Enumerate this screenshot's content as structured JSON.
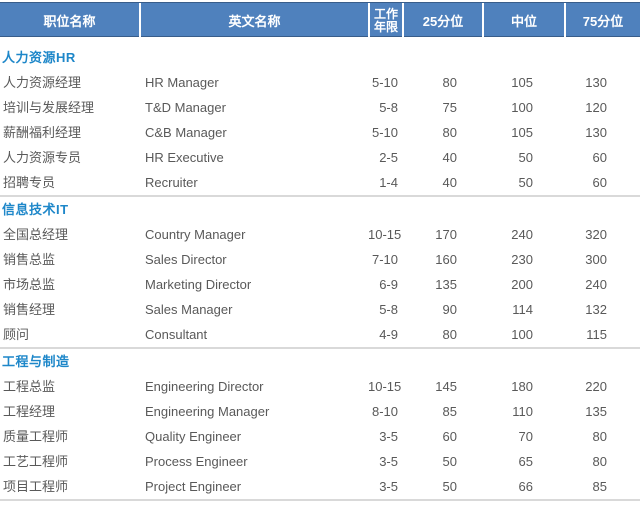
{
  "table": {
    "columns": {
      "position_cn": "职位名称",
      "position_en": "英文名称",
      "years_line1": "工作",
      "years_line2": "年限",
      "p25": "25分位",
      "median": "中位",
      "p75": "75分位"
    },
    "sections": [
      {
        "title": "人力资源HR",
        "rows": [
          {
            "cn": "人力资源经理",
            "en": "HR Manager",
            "years": "5-10",
            "p25": "80",
            "median": "105",
            "p75": "130"
          },
          {
            "cn": "培训与发展经理",
            "en": "T&D Manager",
            "years": "5-8",
            "p25": "75",
            "median": "100",
            "p75": "120"
          },
          {
            "cn": "薪酬福利经理",
            "en": "C&B Manager",
            "years": "5-10",
            "p25": "80",
            "median": "105",
            "p75": "130"
          },
          {
            "cn": "人力资源专员",
            "en": "HR Executive",
            "years": "2-5",
            "p25": "40",
            "median": "50",
            "p75": "60"
          },
          {
            "cn": "招聘专员",
            "en": "Recruiter",
            "years": "1-4",
            "p25": "40",
            "median": "50",
            "p75": "60"
          }
        ]
      },
      {
        "title": "信息技术IT",
        "rows": [
          {
            "cn": "全国总经理",
            "en": "Country Manager",
            "years": "10-15",
            "p25": "170",
            "median": "240",
            "p75": "320"
          },
          {
            "cn": "销售总监",
            "en": "Sales Director",
            "years": "7-10",
            "p25": "160",
            "median": "230",
            "p75": "300"
          },
          {
            "cn": "市场总监",
            "en": "Marketing Director",
            "years": "6-9",
            "p25": "135",
            "median": "200",
            "p75": "240"
          },
          {
            "cn": "销售经理",
            "en": "Sales Manager",
            "years": "5-8",
            "p25": "90",
            "median": "114",
            "p75": "132"
          },
          {
            "cn": "顾问",
            "en": "Consultant",
            "years": "4-9",
            "p25": "80",
            "median": "100",
            "p75": "115"
          }
        ]
      },
      {
        "title": "工程与制造",
        "rows": [
          {
            "cn": "工程总监",
            "en": "Engineering Director",
            "years": "10-15",
            "p25": "145",
            "median": "180",
            "p75": "220"
          },
          {
            "cn": "工程经理",
            "en": "Engineering Manager",
            "years": "8-10",
            "p25": "85",
            "median": "110",
            "p75": "135"
          },
          {
            "cn": "质量工程师",
            "en": "Quality Engineer",
            "years": "3-5",
            "p25": "60",
            "median": "70",
            "p75": "80"
          },
          {
            "cn": "工艺工程师",
            "en": "Process Engineer",
            "years": "3-5",
            "p25": "50",
            "median": "65",
            "p75": "80"
          },
          {
            "cn": "项目工程师",
            "en": "Project Engineer",
            "years": "3-5",
            "p25": "50",
            "median": "66",
            "p75": "85"
          }
        ]
      }
    ],
    "colors": {
      "header_bg": "#4f81bd",
      "header_border": "#385d8a",
      "header_text": "#ffffff",
      "section_title": "#1e87c9",
      "body_text": "#595959",
      "divider": "#d9d9d9"
    }
  }
}
